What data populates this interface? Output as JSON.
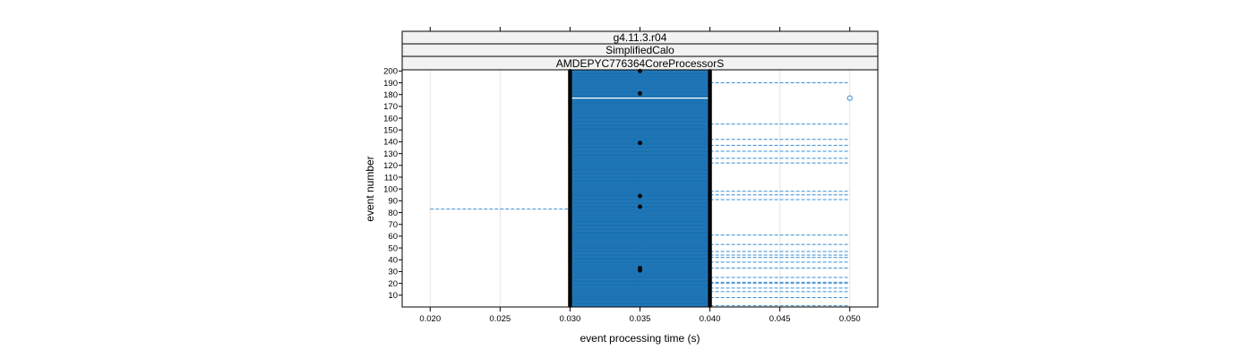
{
  "chart_data": {
    "type": "box-per-event (lattice bwplot)",
    "strips": [
      "g4.11.3.r04",
      "SimplifiedCalo",
      "AMDEPYC776364CoreProcessorS"
    ],
    "xlabel": "event processing time (s)",
    "ylabel": "event number",
    "xlim": [
      0.018,
      0.052
    ],
    "ylim": [
      0,
      201
    ],
    "x_ticks": [
      {
        "value": 0.02,
        "label": "0.020"
      },
      {
        "value": 0.025,
        "label": "0.025"
      },
      {
        "value": 0.03,
        "label": "0.030"
      },
      {
        "value": 0.035,
        "label": "0.035"
      },
      {
        "value": 0.04,
        "label": "0.040"
      },
      {
        "value": 0.045,
        "label": "0.045"
      },
      {
        "value": 0.05,
        "label": "0.050"
      }
    ],
    "y_ticks": [
      {
        "value": 10,
        "label": "10"
      },
      {
        "value": 20,
        "label": "20"
      },
      {
        "value": 30,
        "label": "30"
      },
      {
        "value": 40,
        "label": "40"
      },
      {
        "value": 50,
        "label": "50"
      },
      {
        "value": 60,
        "label": "60"
      },
      {
        "value": 70,
        "label": "70"
      },
      {
        "value": 80,
        "label": "80"
      },
      {
        "value": 90,
        "label": "90"
      },
      {
        "value": 100,
        "label": "100"
      },
      {
        "value": 110,
        "label": "110"
      },
      {
        "value": 120,
        "label": "120"
      },
      {
        "value": 130,
        "label": "130"
      },
      {
        "value": 140,
        "label": "140"
      },
      {
        "value": 150,
        "label": "150"
      },
      {
        "value": 160,
        "label": "160"
      },
      {
        "value": 170,
        "label": "170"
      },
      {
        "value": 180,
        "label": "180"
      },
      {
        "value": 190,
        "label": "190"
      },
      {
        "value": 200,
        "label": "200"
      }
    ],
    "events": {
      "first": 1,
      "last": 200
    },
    "box": {
      "lower": 0.03,
      "upper": 0.04,
      "median_default": 0.03
    },
    "median_at_0035_events": [
      31,
      33,
      85,
      94,
      139,
      181,
      200
    ],
    "upper_whisker_to_005_events": [
      1,
      8,
      13,
      16,
      20,
      21,
      25,
      33,
      38,
      42,
      44,
      47,
      53,
      61,
      91,
      95,
      98,
      122,
      126,
      132,
      137,
      142,
      155,
      190
    ],
    "lower_whisker_to_002_events": [
      83
    ],
    "outliers": [
      {
        "event": 177,
        "value": 0.05
      }
    ],
    "grid": true,
    "colors": {
      "box_fill": "#1f7cc1",
      "box_line": "#0a5f9c",
      "whisker": "#3b8ed0",
      "median_dot": "#000000",
      "outlier": "#3b8ed0",
      "strip_bg": "#f2f2f2",
      "grid": "#e6e6e6"
    }
  }
}
